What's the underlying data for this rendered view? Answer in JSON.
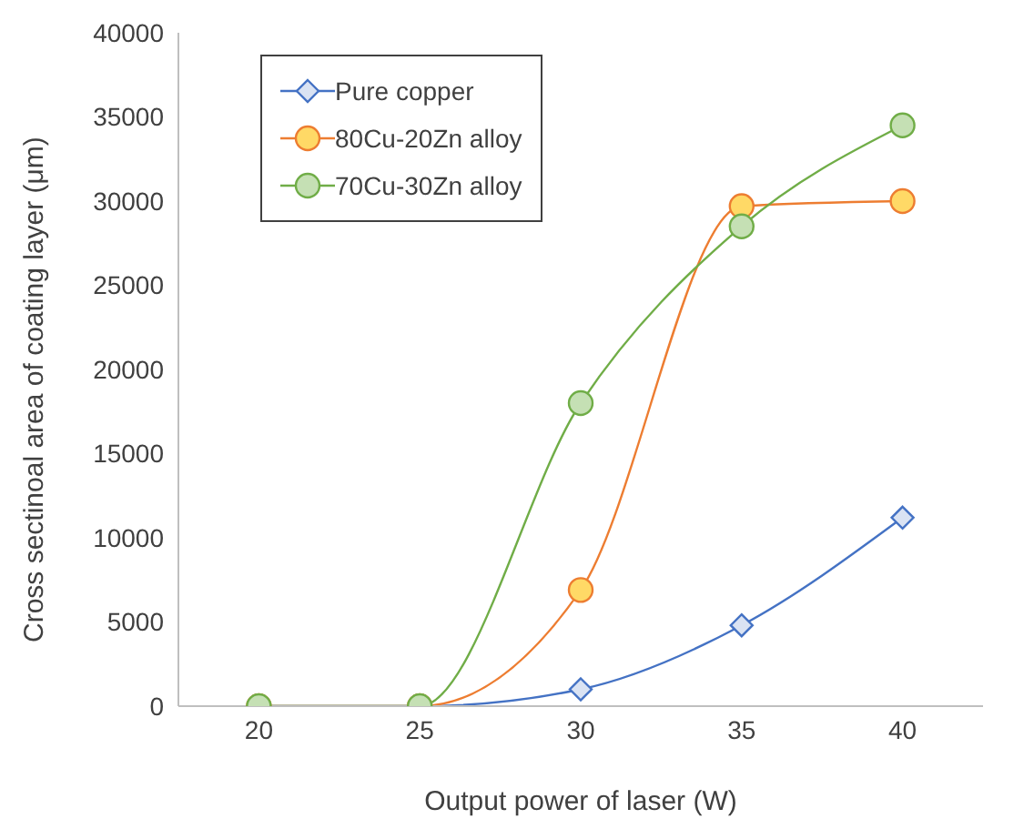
{
  "chart_data": {
    "type": "line",
    "xlabel": "Output power of laser (W)",
    "ylabel": "Cross sectinoal area of coating layer (μm)",
    "x": [
      20,
      25,
      30,
      35,
      40
    ],
    "xlim": [
      17.5,
      42.5
    ],
    "xticks": [
      20,
      25,
      30,
      35,
      40
    ],
    "ylim": [
      0,
      40000
    ],
    "yticks": [
      0,
      5000,
      10000,
      15000,
      20000,
      25000,
      30000,
      35000,
      40000
    ],
    "grid": false,
    "legend": "top left",
    "series": [
      {
        "name": "Pure copper",
        "color": "#4472c4",
        "marker": "diamond",
        "values": [
          0,
          0,
          1000,
          4800,
          11200
        ]
      },
      {
        "name": "80Cu-20Zn alloy",
        "color": "#ed7d31",
        "marker": "circle",
        "values": [
          0,
          0,
          6900,
          29700,
          30000
        ]
      },
      {
        "name": "70Cu-30Zn alloy",
        "color": "#70ad47",
        "marker": "circle",
        "values": [
          0,
          0,
          18000,
          28500,
          34500
        ]
      }
    ]
  }
}
